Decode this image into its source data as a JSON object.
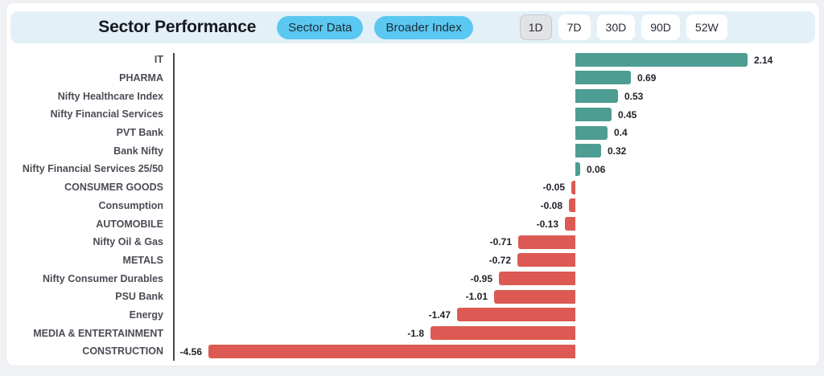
{
  "header": {
    "title": "Sector Performance",
    "view_buttons": [
      {
        "label": "Sector Data"
      },
      {
        "label": "Broader Index"
      }
    ],
    "period_buttons": [
      {
        "label": "1D",
        "selected": true
      },
      {
        "label": "7D",
        "selected": false
      },
      {
        "label": "30D",
        "selected": false
      },
      {
        "label": "90D",
        "selected": false
      },
      {
        "label": "52W",
        "selected": false
      }
    ]
  },
  "colors": {
    "header_bg": "#e3f0f8",
    "view_button_bg": "#5ac8f1",
    "period_selected_bg": "#e2e3e5",
    "positive_bar": "#4d9d92",
    "negative_bar": "#dc5a53"
  },
  "chart_data": {
    "type": "bar",
    "orientation": "horizontal",
    "title": "Sector Performance",
    "xlabel": "",
    "ylabel": "",
    "xlim": [
      -5,
      3
    ],
    "grid": false,
    "legend": false,
    "categories": [
      "IT",
      "PHARMA",
      "Nifty Healthcare Index",
      "Nifty Financial Services",
      "PVT Bank",
      "Bank Nifty",
      "Nifty Financial Services 25/50",
      "CONSUMER GOODS",
      "Consumption",
      "AUTOMOBILE",
      "Nifty Oil & Gas",
      "METALS",
      "Nifty Consumer Durables",
      "PSU Bank",
      "Energy",
      "MEDIA & ENTERTAINMENT",
      "CONSTRUCTION"
    ],
    "values": [
      2.14,
      0.69,
      0.53,
      0.45,
      0.4,
      0.32,
      0.06,
      -0.05,
      -0.08,
      -0.13,
      -0.71,
      -0.72,
      -0.95,
      -1.01,
      -1.47,
      -1.8,
      -4.56
    ],
    "value_labels": [
      "2.14",
      "0.69",
      "0.53",
      "0.45",
      "0.4",
      "0.32",
      "0.06",
      "-0.05",
      "-0.08",
      "-0.13",
      "-0.71",
      "-0.72",
      "-0.95",
      "-1.01",
      "-1.47",
      "-1.8",
      "-4.56"
    ]
  }
}
